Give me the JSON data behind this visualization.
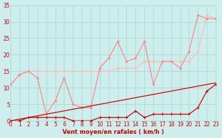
{
  "x": [
    0,
    1,
    2,
    3,
    4,
    5,
    6,
    7,
    8,
    9,
    10,
    11,
    12,
    13,
    14,
    15,
    16,
    17,
    18,
    19,
    20,
    21,
    22,
    23
  ],
  "wind_avg": [
    0,
    0,
    1,
    1,
    1,
    1,
    1,
    0,
    0,
    0,
    1,
    1,
    1,
    1,
    3,
    1,
    2,
    2,
    2,
    2,
    2,
    4,
    9,
    11
  ],
  "wind_gust": [
    11,
    14,
    15,
    13,
    2,
    6,
    13,
    5,
    4,
    4,
    16,
    19,
    24,
    18,
    19,
    24,
    11,
    18,
    18,
    16,
    21,
    32,
    31,
    31
  ],
  "wind_upper": [
    11,
    14,
    15,
    15,
    15,
    15,
    15,
    15,
    15,
    15,
    15,
    15,
    16,
    16,
    16,
    18,
    18,
    18,
    18,
    18,
    18,
    21,
    32,
    31
  ],
  "trend_low": [
    0.0,
    0.5,
    1.0,
    1.5,
    2.0,
    2.5,
    3.0,
    3.5,
    4.0,
    4.5,
    5.0,
    5.5,
    6.0,
    6.5,
    7.0,
    7.5,
    8.0,
    8.5,
    9.0,
    9.5,
    10.0,
    10.5,
    11.0,
    11.5
  ],
  "xlabel": "Vent moyen/en rafales ( km/h )",
  "xlim": [
    0,
    23
  ],
  "ylim": [
    0,
    35
  ],
  "yticks": [
    0,
    5,
    10,
    15,
    20,
    25,
    30,
    35
  ],
  "xticks": [
    0,
    1,
    2,
    3,
    4,
    5,
    6,
    7,
    8,
    9,
    10,
    11,
    12,
    13,
    14,
    15,
    16,
    17,
    18,
    19,
    20,
    21,
    22,
    23
  ],
  "bg_color": "#cdeeed",
  "grid_color": "#aad8d4",
  "color_avg": "#cc0000",
  "color_gust": "#ff8888",
  "color_upper": "#ffbbbb",
  "color_trend": "#cc0000",
  "lw": 0.9
}
